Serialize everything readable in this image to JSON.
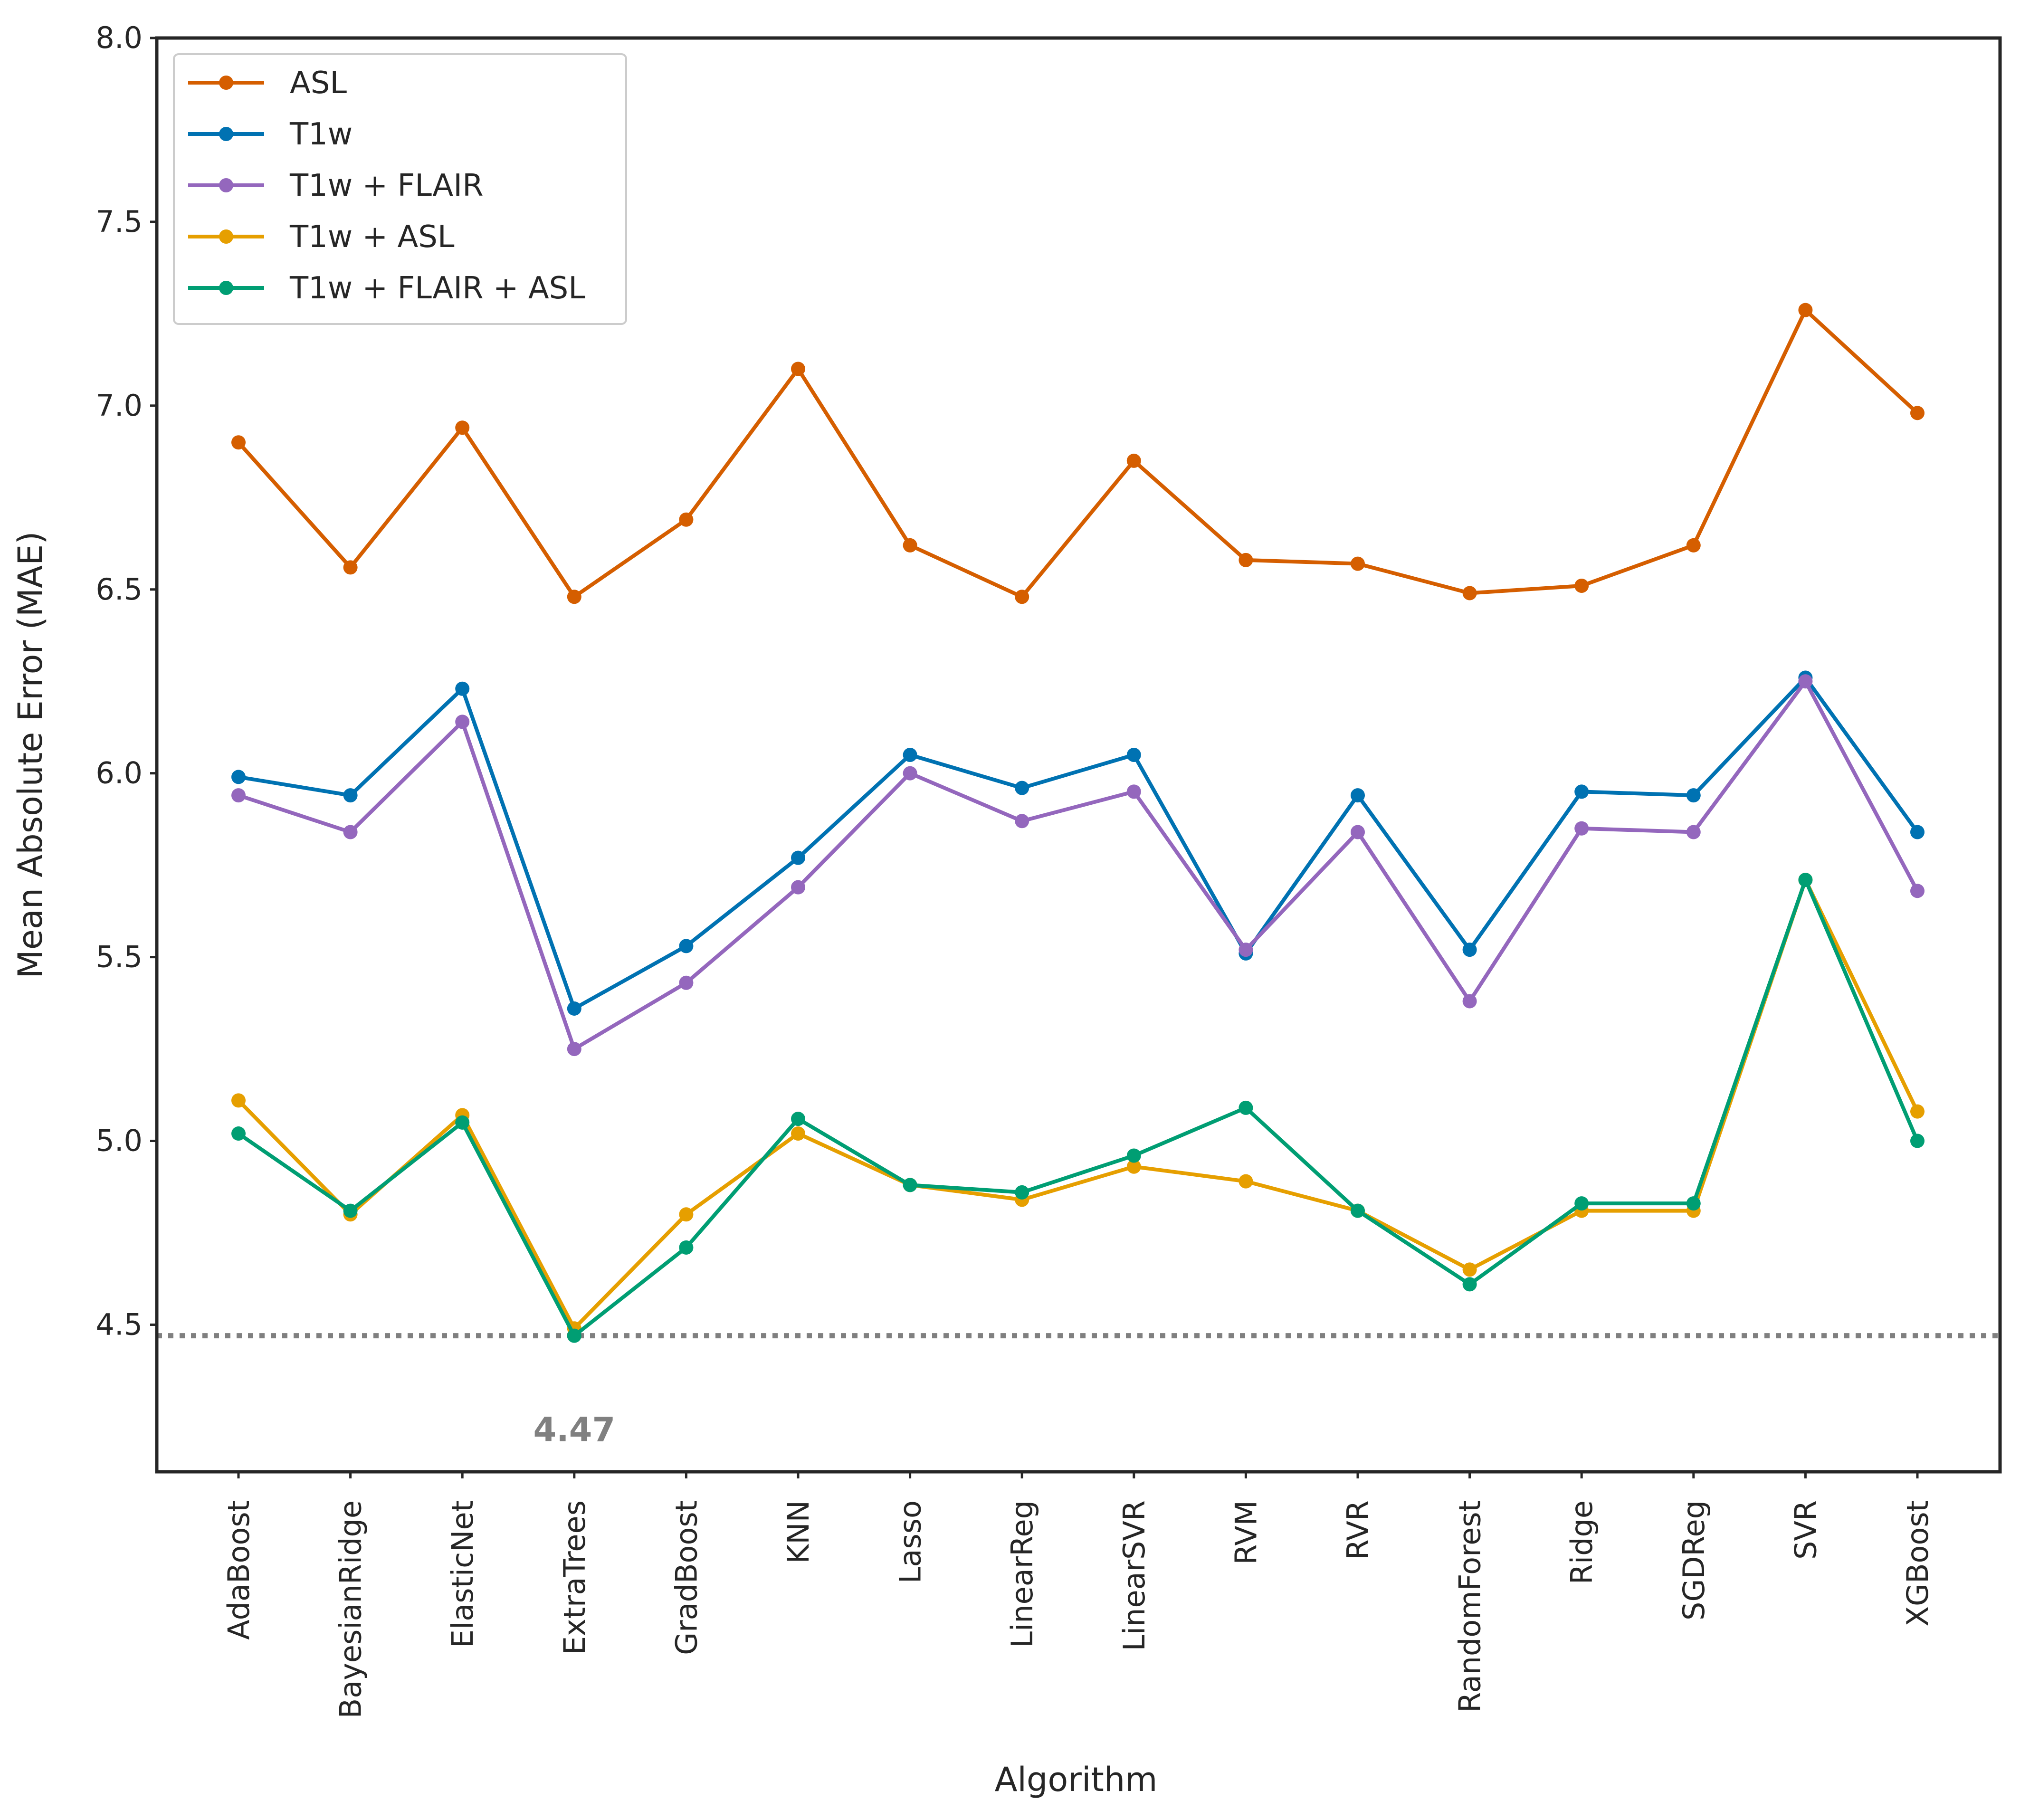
{
  "chart_data": {
    "type": "line",
    "title": "",
    "xlabel": "Algorithm",
    "ylabel": "Mean Absolute Error (MAE)",
    "ylim": [
      4.1,
      8.0
    ],
    "yticks": [
      "4.5",
      "5.0",
      "5.5",
      "6.0",
      "6.5",
      "7.0",
      "7.5",
      "8.0"
    ],
    "grid": false,
    "legend_position": "top-left",
    "categories": [
      "AdaBoost",
      "BayesianRidge",
      "ElasticNet",
      "ExtraTrees",
      "GradBoost",
      "KNN",
      "Lasso",
      "LinearReg",
      "LinearSVR",
      "RVM",
      "RVR",
      "RandomForest",
      "Ridge",
      "SGDReg",
      "SVR",
      "XGBoost"
    ],
    "series": [
      {
        "name": "ASL",
        "color": "#D55E00",
        "values": [
          6.9,
          6.56,
          6.94,
          6.48,
          6.69,
          7.1,
          6.62,
          6.48,
          6.85,
          6.58,
          6.57,
          6.49,
          6.51,
          6.62,
          7.26,
          6.98
        ]
      },
      {
        "name": "T1w",
        "color": "#0072B2",
        "values": [
          5.99,
          5.94,
          6.23,
          5.36,
          5.53,
          5.77,
          6.05,
          5.96,
          6.05,
          5.51,
          5.94,
          5.52,
          5.95,
          5.94,
          6.26,
          5.84
        ]
      },
      {
        "name": "T1w + FLAIR",
        "color": "#9467BD",
        "values": [
          5.94,
          5.84,
          6.14,
          5.25,
          5.43,
          5.69,
          6.0,
          5.87,
          5.95,
          5.52,
          5.84,
          5.38,
          5.85,
          5.84,
          6.25,
          5.68
        ]
      },
      {
        "name": "T1w + ASL",
        "color": "#E69F00",
        "values": [
          5.11,
          4.8,
          5.07,
          4.49,
          4.8,
          5.02,
          4.88,
          4.84,
          4.93,
          4.89,
          4.81,
          4.65,
          4.81,
          4.81,
          5.71,
          5.08
        ]
      },
      {
        "name": "T1w + FLAIR + ASL",
        "color": "#009E73",
        "values": [
          5.02,
          4.81,
          5.05,
          4.47,
          4.71,
          5.06,
          4.88,
          4.86,
          4.96,
          5.09,
          4.81,
          4.61,
          4.83,
          4.83,
          5.71,
          5.0
        ]
      }
    ],
    "reference_line": {
      "value": 4.47,
      "label": "4.47",
      "style": "dotted",
      "color": "#808080"
    }
  }
}
